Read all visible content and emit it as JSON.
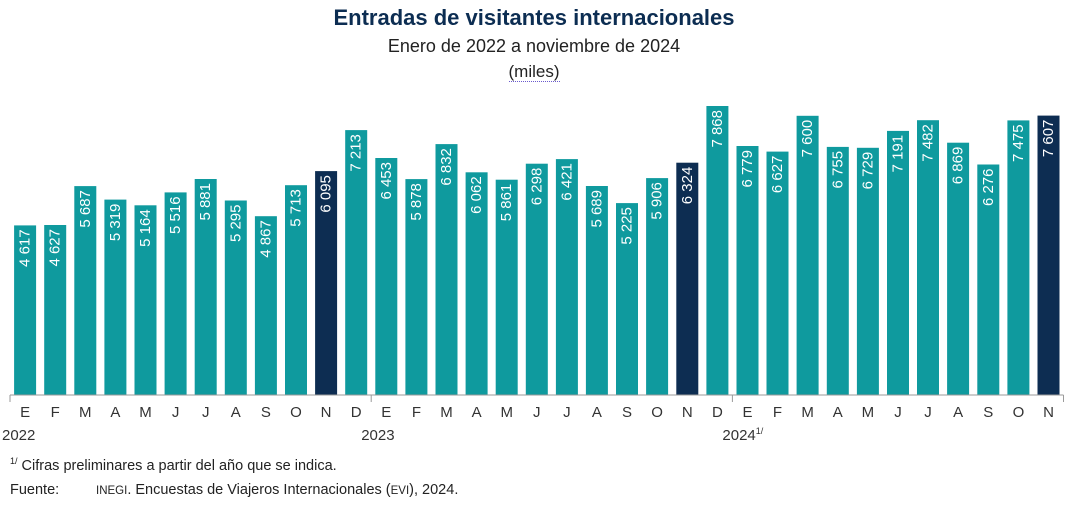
{
  "header": {
    "title": "Entradas de visitantes internacionales",
    "subtitle": "Enero de 2022 a noviembre de 2024",
    "units": "(miles)"
  },
  "footer": {
    "note_mark": "1/",
    "note_text": "Cifras preliminares a partir del año que se indica.",
    "source_label": "Fuente:",
    "source_org": "INEGI",
    "source_text_1": ". Encuestas de Viajeros Internacionales (",
    "source_abbr": "EVI",
    "source_text_2": "), 2024."
  },
  "colors": {
    "bar": "#0f9a9e",
    "highlight": "#0d2d52",
    "axis": "#9a9a9a"
  },
  "chart_data": {
    "type": "bar",
    "title": "Entradas de visitantes internacionales",
    "subtitle": "Enero de 2022 a noviembre de 2024",
    "ylabel": "(miles)",
    "ylim": [
      0,
      8000
    ],
    "categories": [
      "E",
      "F",
      "M",
      "A",
      "M",
      "J",
      "J",
      "A",
      "S",
      "O",
      "N",
      "D",
      "E",
      "F",
      "M",
      "A",
      "M",
      "J",
      "J",
      "A",
      "S",
      "O",
      "N",
      "D",
      "E",
      "F",
      "M",
      "A",
      "M",
      "J",
      "J",
      "A",
      "S",
      "O",
      "N"
    ],
    "values": [
      4617,
      4627,
      5687,
      5319,
      5164,
      5516,
      5881,
      5295,
      4867,
      5713,
      6095,
      7213,
      6453,
      5878,
      6832,
      6062,
      5861,
      6298,
      6421,
      5689,
      5225,
      5906,
      6324,
      7868,
      6779,
      6627,
      7600,
      6755,
      6729,
      7191,
      7482,
      6869,
      6276,
      7475,
      7607
    ],
    "labels": [
      "4 617",
      "4 627",
      "5 687",
      "5 319",
      "5 164",
      "5 516",
      "5 881",
      "5 295",
      "4 867",
      "5 713",
      "6 095",
      "7 213",
      "6 453",
      "5 878",
      "6 832",
      "6 062",
      "5 861",
      "6 298",
      "6 421",
      "5 689",
      "5 225",
      "5 906",
      "6 324",
      "7 868",
      "6 779",
      "6 627",
      "7 600",
      "6 755",
      "6 729",
      "7 191",
      "7 482",
      "6 869",
      "6 276",
      "7 475",
      "7 607"
    ],
    "highlighted": [
      10,
      22,
      34
    ],
    "year_groups": [
      {
        "label": "2022",
        "start": 0
      },
      {
        "label": "2023",
        "start": 12
      },
      {
        "label": "2024",
        "sup": "1/",
        "start": 24
      }
    ],
    "grid": false,
    "data_labels": "inside-bar-vertical"
  }
}
